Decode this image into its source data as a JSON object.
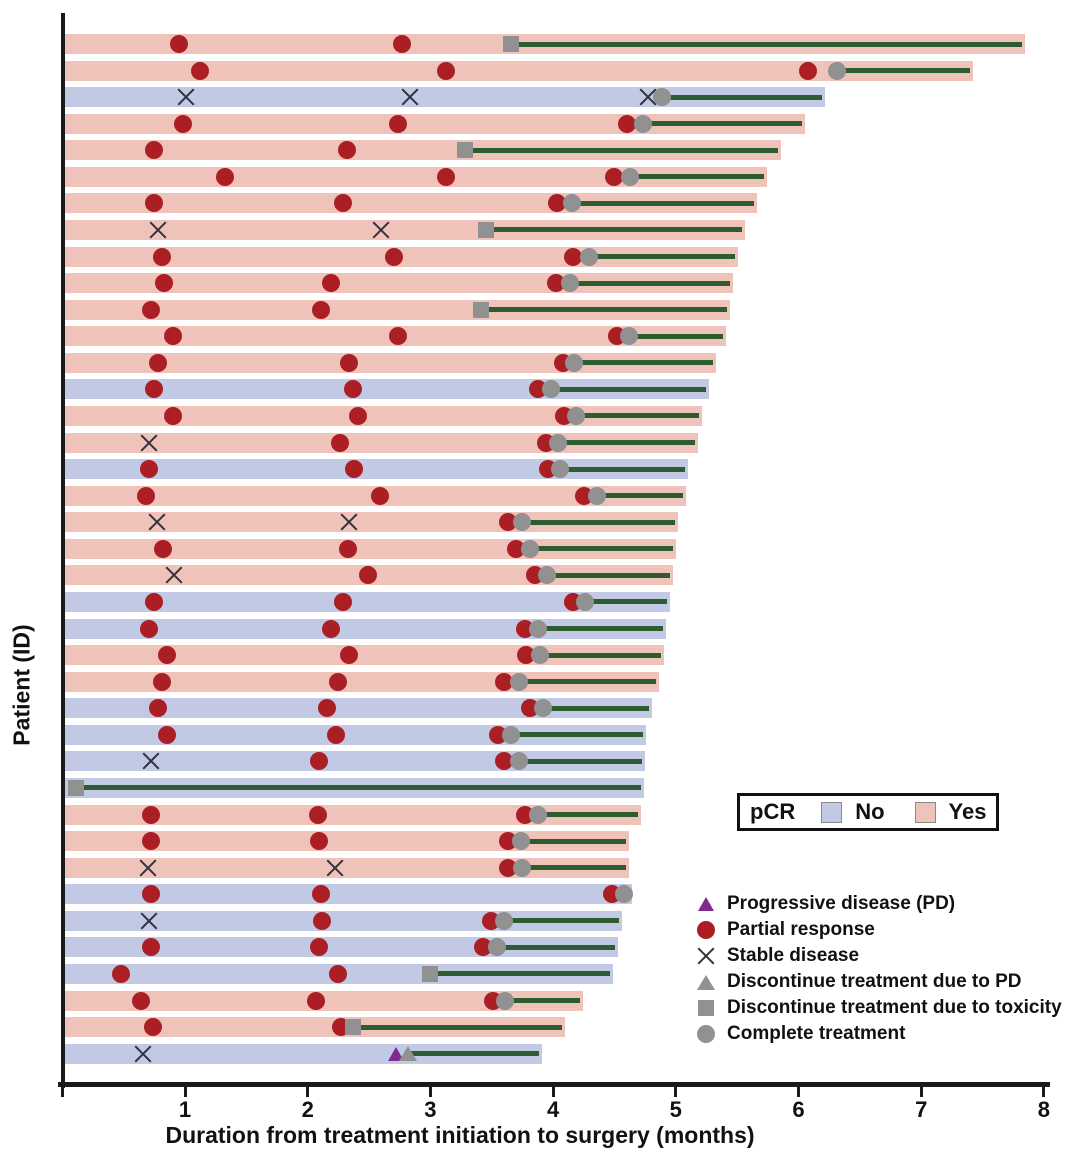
{
  "colors": {
    "pcr_yes_bar": "#efc3b9",
    "pcr_no_bar": "#c1c9e4",
    "partial_response_red": "#ab1f24",
    "stable_disease_x": "#32323e",
    "progressive_disease_purple": "#7d2b90",
    "discontinue_complete_gray": "#919191",
    "treatment_line_green": "#2d5c2e",
    "axis_black": "#1a1a1a"
  },
  "pcr_legend": {
    "title": "pCR",
    "no_label": "No",
    "yes_label": "Yes"
  },
  "marker_legend": [
    {
      "type": "pd",
      "label": "Progressive disease (PD)"
    },
    {
      "type": "pr",
      "label": "Partial response"
    },
    {
      "type": "sd",
      "label": "Stable disease"
    },
    {
      "type": "dpd",
      "label": "Discontinue treatment due to PD"
    },
    {
      "type": "tox",
      "label": "Discontinue treatment due to toxicity"
    },
    {
      "type": "comp",
      "label": "Complete treatment"
    }
  ],
  "chart_data": {
    "type": "bar",
    "subtype": "swimmer-plot",
    "xlabel": "Duration from treatment initiation to surgery (months)",
    "ylabel": "Patient (ID)",
    "xlim": [
      0,
      8
    ],
    "x_ticks": [
      "1",
      "2",
      "3",
      "4",
      "5",
      "6",
      "7",
      "8"
    ],
    "grid": false,
    "bar_color_key": "pCR status: Yes = pink, No = blue",
    "marker_types": {
      "pr": "Partial response",
      "sd": "Stable disease",
      "pd": "Progressive disease (PD)",
      "dpd": "Discontinue treatment due to PD",
      "tox": "Discontinue treatment due to toxicity",
      "comp": "Complete treatment"
    },
    "line_meaning": "dark-green segment runs from treatment-end marker to surgery (bar end)",
    "patients": [
      {
        "pcr": "Yes",
        "end": 7.85,
        "markers": [
          {
            "t": "pr",
            "x": 0.95
          },
          {
            "t": "pr",
            "x": 2.77
          },
          {
            "t": "tox",
            "x": 3.66
          }
        ]
      },
      {
        "pcr": "Yes",
        "end": 7.42,
        "markers": [
          {
            "t": "pr",
            "x": 1.12
          },
          {
            "t": "pr",
            "x": 3.13
          },
          {
            "t": "pr",
            "x": 6.08
          },
          {
            "t": "comp",
            "x": 6.31
          }
        ]
      },
      {
        "pcr": "No",
        "end": 6.22,
        "markers": [
          {
            "t": "sd",
            "x": 1.01
          },
          {
            "t": "sd",
            "x": 2.83
          },
          {
            "t": "sd",
            "x": 4.77
          },
          {
            "t": "comp",
            "x": 4.89
          }
        ]
      },
      {
        "pcr": "Yes",
        "end": 6.05,
        "markers": [
          {
            "t": "pr",
            "x": 0.98
          },
          {
            "t": "pr",
            "x": 2.74
          },
          {
            "t": "pr",
            "x": 4.6
          },
          {
            "t": "comp",
            "x": 4.73
          }
        ]
      },
      {
        "pcr": "Yes",
        "end": 5.86,
        "markers": [
          {
            "t": "pr",
            "x": 0.75
          },
          {
            "t": "pr",
            "x": 2.32
          },
          {
            "t": "tox",
            "x": 3.28
          }
        ]
      },
      {
        "pcr": "Yes",
        "end": 5.74,
        "markers": [
          {
            "t": "pr",
            "x": 1.33
          },
          {
            "t": "pr",
            "x": 3.13
          },
          {
            "t": "pr",
            "x": 4.5
          },
          {
            "t": "comp",
            "x": 4.63
          }
        ]
      },
      {
        "pcr": "Yes",
        "end": 5.66,
        "markers": [
          {
            "t": "pr",
            "x": 0.75
          },
          {
            "t": "pr",
            "x": 2.29
          },
          {
            "t": "pr",
            "x": 4.03
          },
          {
            "t": "comp",
            "x": 4.15
          }
        ]
      },
      {
        "pcr": "Yes",
        "end": 5.56,
        "markers": [
          {
            "t": "sd",
            "x": 0.78
          },
          {
            "t": "sd",
            "x": 2.6
          },
          {
            "t": "tox",
            "x": 3.45
          }
        ]
      },
      {
        "pcr": "Yes",
        "end": 5.51,
        "markers": [
          {
            "t": "pr",
            "x": 0.81
          },
          {
            "t": "pr",
            "x": 2.7
          },
          {
            "t": "pr",
            "x": 4.16
          },
          {
            "t": "comp",
            "x": 4.29
          }
        ]
      },
      {
        "pcr": "Yes",
        "end": 5.47,
        "markers": [
          {
            "t": "pr",
            "x": 0.83
          },
          {
            "t": "pr",
            "x": 2.19
          },
          {
            "t": "pr",
            "x": 4.02
          },
          {
            "t": "comp",
            "x": 4.14
          }
        ]
      },
      {
        "pcr": "Yes",
        "end": 5.44,
        "markers": [
          {
            "t": "pr",
            "x": 0.72
          },
          {
            "t": "pr",
            "x": 2.11
          },
          {
            "t": "tox",
            "x": 3.41
          }
        ]
      },
      {
        "pcr": "Yes",
        "end": 5.41,
        "markers": [
          {
            "t": "pr",
            "x": 0.9
          },
          {
            "t": "pr",
            "x": 2.74
          },
          {
            "t": "pr",
            "x": 4.52
          },
          {
            "t": "comp",
            "x": 4.62
          }
        ]
      },
      {
        "pcr": "Yes",
        "end": 5.33,
        "markers": [
          {
            "t": "pr",
            "x": 0.78
          },
          {
            "t": "pr",
            "x": 2.34
          },
          {
            "t": "pr",
            "x": 4.08
          },
          {
            "t": "comp",
            "x": 4.17
          }
        ]
      },
      {
        "pcr": "No",
        "end": 5.27,
        "markers": [
          {
            "t": "pr",
            "x": 0.75
          },
          {
            "t": "pr",
            "x": 2.37
          },
          {
            "t": "pr",
            "x": 3.88
          },
          {
            "t": "comp",
            "x": 3.98
          }
        ]
      },
      {
        "pcr": "Yes",
        "end": 5.21,
        "markers": [
          {
            "t": "pr",
            "x": 0.9
          },
          {
            "t": "pr",
            "x": 2.41
          },
          {
            "t": "pr",
            "x": 4.09
          },
          {
            "t": "comp",
            "x": 4.19
          }
        ]
      },
      {
        "pcr": "Yes",
        "end": 5.18,
        "markers": [
          {
            "t": "sd",
            "x": 0.71
          },
          {
            "t": "pr",
            "x": 2.26
          },
          {
            "t": "pr",
            "x": 3.94
          },
          {
            "t": "comp",
            "x": 4.04
          }
        ]
      },
      {
        "pcr": "No",
        "end": 5.1,
        "markers": [
          {
            "t": "pr",
            "x": 0.71
          },
          {
            "t": "pr",
            "x": 2.38
          },
          {
            "t": "pr",
            "x": 3.96
          },
          {
            "t": "comp",
            "x": 4.06
          }
        ]
      },
      {
        "pcr": "Yes",
        "end": 5.08,
        "markers": [
          {
            "t": "pr",
            "x": 0.68
          },
          {
            "t": "pr",
            "x": 2.59
          },
          {
            "t": "pr",
            "x": 4.25
          },
          {
            "t": "comp",
            "x": 4.36
          }
        ]
      },
      {
        "pcr": "Yes",
        "end": 5.02,
        "markers": [
          {
            "t": "sd",
            "x": 0.77
          },
          {
            "t": "sd",
            "x": 2.34
          },
          {
            "t": "pr",
            "x": 3.63
          },
          {
            "t": "comp",
            "x": 3.75
          }
        ]
      },
      {
        "pcr": "Yes",
        "end": 5.0,
        "markers": [
          {
            "t": "pr",
            "x": 0.82
          },
          {
            "t": "pr",
            "x": 2.33
          },
          {
            "t": "pr",
            "x": 3.7
          },
          {
            "t": "comp",
            "x": 3.81
          }
        ]
      },
      {
        "pcr": "Yes",
        "end": 4.98,
        "markers": [
          {
            "t": "sd",
            "x": 0.91
          },
          {
            "t": "pr",
            "x": 2.49
          },
          {
            "t": "pr",
            "x": 3.85
          },
          {
            "t": "comp",
            "x": 3.95
          }
        ]
      },
      {
        "pcr": "No",
        "end": 4.95,
        "markers": [
          {
            "t": "pr",
            "x": 0.75
          },
          {
            "t": "pr",
            "x": 2.29
          },
          {
            "t": "pr",
            "x": 4.16
          },
          {
            "t": "comp",
            "x": 4.26
          }
        ]
      },
      {
        "pcr": "No",
        "end": 4.92,
        "markers": [
          {
            "t": "pr",
            "x": 0.71
          },
          {
            "t": "pr",
            "x": 2.19
          },
          {
            "t": "pr",
            "x": 3.77
          },
          {
            "t": "comp",
            "x": 3.88
          }
        ]
      },
      {
        "pcr": "Yes",
        "end": 4.9,
        "markers": [
          {
            "t": "pr",
            "x": 0.85
          },
          {
            "t": "pr",
            "x": 2.34
          },
          {
            "t": "pr",
            "x": 3.78
          },
          {
            "t": "comp",
            "x": 3.89
          }
        ]
      },
      {
        "pcr": "Yes",
        "end": 4.86,
        "markers": [
          {
            "t": "pr",
            "x": 0.81
          },
          {
            "t": "pr",
            "x": 2.25
          },
          {
            "t": "pr",
            "x": 3.6
          },
          {
            "t": "comp",
            "x": 3.72
          }
        ]
      },
      {
        "pcr": "No",
        "end": 4.81,
        "markers": [
          {
            "t": "pr",
            "x": 0.78
          },
          {
            "t": "pr",
            "x": 2.16
          },
          {
            "t": "pr",
            "x": 3.81
          },
          {
            "t": "comp",
            "x": 3.92
          }
        ]
      },
      {
        "pcr": "No",
        "end": 4.76,
        "markers": [
          {
            "t": "pr",
            "x": 0.85
          },
          {
            "t": "pr",
            "x": 2.23
          },
          {
            "t": "pr",
            "x": 3.55
          },
          {
            "t": "comp",
            "x": 3.66
          }
        ]
      },
      {
        "pcr": "No",
        "end": 4.75,
        "markers": [
          {
            "t": "sd",
            "x": 0.72
          },
          {
            "t": "pr",
            "x": 2.09
          },
          {
            "t": "pr",
            "x": 3.6
          },
          {
            "t": "comp",
            "x": 3.72
          }
        ]
      },
      {
        "pcr": "No",
        "end": 4.74,
        "markers": [
          {
            "t": "tox",
            "x": 0.11
          }
        ]
      },
      {
        "pcr": "Yes",
        "end": 4.72,
        "markers": [
          {
            "t": "pr",
            "x": 0.72
          },
          {
            "t": "pr",
            "x": 2.08
          },
          {
            "t": "pr",
            "x": 3.77
          },
          {
            "t": "comp",
            "x": 3.88
          }
        ]
      },
      {
        "pcr": "Yes",
        "end": 4.62,
        "markers": [
          {
            "t": "pr",
            "x": 0.72
          },
          {
            "t": "pr",
            "x": 2.09
          },
          {
            "t": "pr",
            "x": 3.63
          },
          {
            "t": "comp",
            "x": 3.74
          }
        ]
      },
      {
        "pcr": "Yes",
        "end": 4.62,
        "markers": [
          {
            "t": "sd",
            "x": 0.7
          },
          {
            "t": "sd",
            "x": 2.22
          },
          {
            "t": "pr",
            "x": 3.63
          },
          {
            "t": "comp",
            "x": 3.75
          }
        ]
      },
      {
        "pcr": "No",
        "end": 4.64,
        "markers": [
          {
            "t": "pr",
            "x": 0.72
          },
          {
            "t": "pr",
            "x": 2.11
          },
          {
            "t": "pr",
            "x": 4.48
          },
          {
            "t": "comp",
            "x": 4.58
          }
        ]
      },
      {
        "pcr": "No",
        "end": 4.56,
        "markers": [
          {
            "t": "sd",
            "x": 0.71
          },
          {
            "t": "pr",
            "x": 2.12
          },
          {
            "t": "pr",
            "x": 3.49
          },
          {
            "t": "comp",
            "x": 3.6
          }
        ]
      },
      {
        "pcr": "No",
        "end": 4.53,
        "markers": [
          {
            "t": "pr",
            "x": 0.72
          },
          {
            "t": "pr",
            "x": 2.09
          },
          {
            "t": "pr",
            "x": 3.43
          },
          {
            "t": "comp",
            "x": 3.54
          }
        ]
      },
      {
        "pcr": "No",
        "end": 4.49,
        "markers": [
          {
            "t": "pr",
            "x": 0.48
          },
          {
            "t": "pr",
            "x": 2.25
          },
          {
            "t": "tox",
            "x": 3.0
          }
        ]
      },
      {
        "pcr": "Yes",
        "end": 4.24,
        "markers": [
          {
            "t": "pr",
            "x": 0.64
          },
          {
            "t": "pr",
            "x": 2.07
          },
          {
            "t": "pr",
            "x": 3.51
          },
          {
            "t": "comp",
            "x": 3.61
          }
        ]
      },
      {
        "pcr": "Yes",
        "end": 4.1,
        "markers": [
          {
            "t": "pr",
            "x": 0.74
          },
          {
            "t": "pr",
            "x": 2.27
          },
          {
            "t": "tox",
            "x": 2.37
          }
        ]
      },
      {
        "pcr": "No",
        "end": 3.91,
        "markers": [
          {
            "t": "sd",
            "x": 0.66
          },
          {
            "t": "pd",
            "x": 2.72
          },
          {
            "t": "dpd",
            "x": 2.82
          }
        ]
      }
    ]
  }
}
